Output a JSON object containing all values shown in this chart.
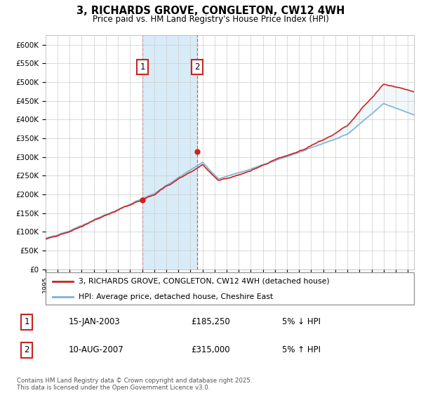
{
  "title": "3, RICHARDS GROVE, CONGLETON, CW12 4WH",
  "subtitle": "Price paid vs. HM Land Registry's House Price Index (HPI)",
  "ylabel_ticks": [
    "£0",
    "£50K",
    "£100K",
    "£150K",
    "£200K",
    "£250K",
    "£300K",
    "£350K",
    "£400K",
    "£450K",
    "£500K",
    "£550K",
    "£600K"
  ],
  "ytick_vals": [
    0,
    50000,
    100000,
    150000,
    200000,
    250000,
    300000,
    350000,
    400000,
    450000,
    500000,
    550000,
    600000
  ],
  "ylim": [
    0,
    625000
  ],
  "xlim_start": 1995.0,
  "xlim_end": 2025.5,
  "sale1_x": 2003.04,
  "sale1_y": 185250,
  "sale2_x": 2007.58,
  "sale2_y": 315000,
  "sale1_label": "1",
  "sale2_label": "2",
  "legend_line1": "3, RICHARDS GROVE, CONGLETON, CW12 4WH (detached house)",
  "legend_line2": "HPI: Average price, detached house, Cheshire East",
  "table_row1_num": "1",
  "table_row1_date": "15-JAN-2003",
  "table_row1_price": "£185,250",
  "table_row1_hpi": "5% ↓ HPI",
  "table_row2_num": "2",
  "table_row2_date": "10-AUG-2007",
  "table_row2_price": "£315,000",
  "table_row2_hpi": "5% ↑ HPI",
  "footnote": "Contains HM Land Registry data © Crown copyright and database right 2025.\nThis data is licensed under the Open Government Licence v3.0.",
  "price_color": "#cc2222",
  "hpi_color": "#7ab0d4",
  "hpi_fill_color": "#d8ecf8",
  "background_color": "#ffffff",
  "grid_color": "#cccccc",
  "sale_box_color": "#cc2222",
  "shade_color": "#d8ecf8",
  "vline_color": "#dd4444"
}
